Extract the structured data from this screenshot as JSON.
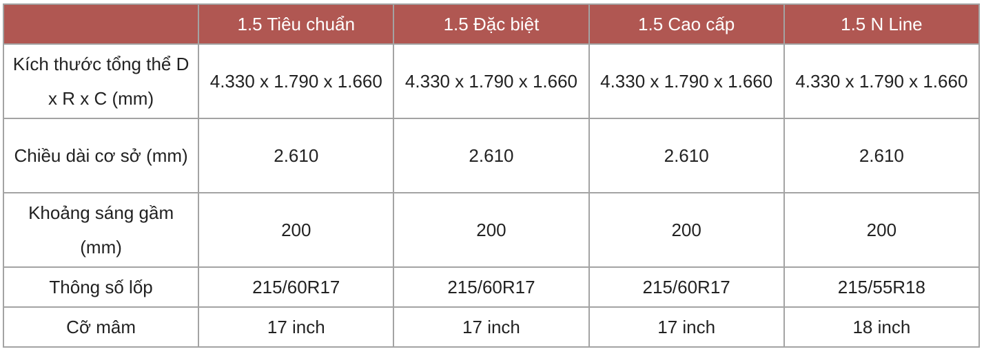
{
  "header": [
    "",
    "1.5 Tiêu chuẩn",
    "1.5 Đặc biệt",
    "1.5 Cao cấp",
    "1.5 N Line"
  ],
  "rows": [
    {
      "label": "Kích thước tổng thể D x R x C (mm)",
      "values": [
        "4.330 x 1.790 x 1.660",
        "4.330 x 1.790 x 1.660",
        "4.330 x 1.790 x 1.660",
        "4.330 x 1.790 x 1.660"
      ]
    },
    {
      "label": "Chiều dài cơ sở (mm)",
      "values": [
        "2.610",
        "2.610",
        "2.610",
        "2.610"
      ]
    },
    {
      "label": "Khoảng sáng gầm (mm)",
      "values": [
        "200",
        "200",
        "200",
        "200"
      ]
    },
    {
      "label": "Thông số lốp",
      "values": [
        "215/60R17",
        "215/60R17",
        "215/60R17",
        "215/55R18"
      ]
    },
    {
      "label": "Cỡ mâm",
      "values": [
        "17 inch",
        "17 inch",
        "17 inch",
        "18 inch"
      ]
    }
  ],
  "colors": {
    "header_bg": "#b05752",
    "border": "#a3a3a3"
  }
}
